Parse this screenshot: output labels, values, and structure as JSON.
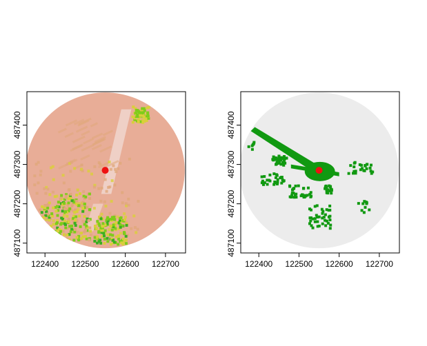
{
  "chart_data": [
    {
      "type": "heatmap",
      "panel": "left",
      "xlim": [
        122355,
        122750
      ],
      "ylim": [
        487075,
        487485
      ],
      "xticks": [
        "122400",
        "122500",
        "122600",
        "122700"
      ],
      "yticks": [
        "487100",
        "487200",
        "487300",
        "487400"
      ],
      "circle_center": [
        122550,
        487285
      ],
      "circle_radius": 198,
      "point": {
        "x": 122550,
        "y": 487285,
        "color": "#ee1111"
      },
      "colors": {
        "base": "#e8ad97",
        "tan": "#e0a87a",
        "light_streak": "#f2dcd6",
        "yellow": "#d9cf3a",
        "green": "#7fcc1a",
        "dark_green": "#3ab020"
      }
    },
    {
      "type": "heatmap",
      "panel": "right",
      "xlim": [
        122355,
        122750
      ],
      "ylim": [
        487075,
        487485
      ],
      "xticks": [
        "122400",
        "122500",
        "122600",
        "122700"
      ],
      "yticks": [
        "487100",
        "487200",
        "487300",
        "487400"
      ],
      "circle_center": [
        122550,
        487285
      ],
      "circle_radius": 198,
      "point": {
        "x": 122550,
        "y": 487285,
        "color": "#ee1111"
      },
      "colors": {
        "background": "#ececec",
        "visible": "#119911"
      }
    }
  ]
}
